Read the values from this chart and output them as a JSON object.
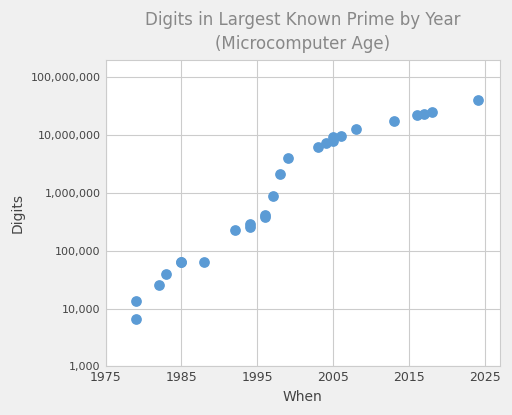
{
  "title": "Digits in Largest Known Prime by Year\n(Microcomputer Age)",
  "xlabel": "When",
  "ylabel": "Digits",
  "fig_background_color": "#f0f0f0",
  "plot_background_color": "#ffffff",
  "point_color": "#5b9bd5",
  "point_size": 45,
  "xlim": [
    1975,
    2027
  ],
  "ylim_log": [
    1000,
    200000000
  ],
  "xticks": [
    1975,
    1985,
    1995,
    2005,
    2015,
    2025
  ],
  "yticks": [
    1000,
    10000,
    100000,
    1000000,
    10000000,
    100000000
  ],
  "ylabels": [
    "1,000",
    "10,000",
    "100,000",
    "1,000,000",
    "10,000,000",
    "100,000,000"
  ],
  "data": [
    {
      "year": 1979,
      "digits": 6533
    },
    {
      "year": 1979,
      "digits": 13395
    },
    {
      "year": 1982,
      "digits": 25962
    },
    {
      "year": 1983,
      "digits": 39751
    },
    {
      "year": 1985,
      "digits": 65050
    },
    {
      "year": 1985,
      "digits": 65087
    },
    {
      "year": 1988,
      "digits": 65050
    },
    {
      "year": 1992,
      "digits": 227832
    },
    {
      "year": 1994,
      "digits": 258716
    },
    {
      "year": 1994,
      "digits": 291581
    },
    {
      "year": 1996,
      "digits": 378632
    },
    {
      "year": 1996,
      "digits": 420921
    },
    {
      "year": 1997,
      "digits": 895932
    },
    {
      "year": 1998,
      "digits": 2098960
    },
    {
      "year": 1999,
      "digits": 4053946
    },
    {
      "year": 2003,
      "digits": 6320430
    },
    {
      "year": 2004,
      "digits": 7235733
    },
    {
      "year": 2005,
      "digits": 7816230
    },
    {
      "year": 2005,
      "digits": 9152052
    },
    {
      "year": 2006,
      "digits": 9808358
    },
    {
      "year": 2008,
      "digits": 12978189
    },
    {
      "year": 2013,
      "digits": 17425170
    },
    {
      "year": 2016,
      "digits": 22338618
    },
    {
      "year": 2017,
      "digits": 23249425
    },
    {
      "year": 2018,
      "digits": 24862048
    },
    {
      "year": 2024,
      "digits": 41024320
    }
  ]
}
